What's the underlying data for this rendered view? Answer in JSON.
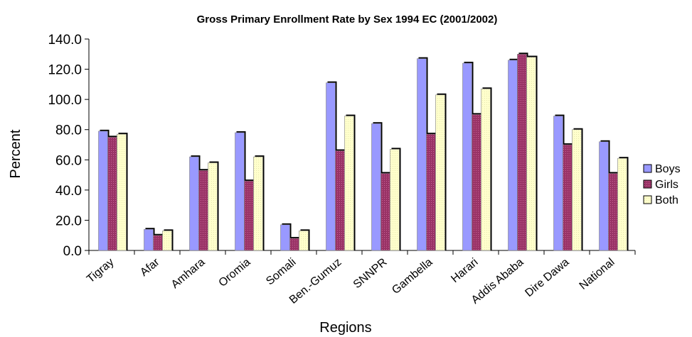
{
  "chart_data": {
    "type": "bar",
    "title": "Gross Primary Enrollment Rate by Sex 1994 EC (2001/2002)",
    "xlabel": "Regions",
    "ylabel": "Percent",
    "ylim": [
      0,
      140
    ],
    "yticks": [
      "0.0",
      "20.0",
      "40.0",
      "60.0",
      "80.0",
      "100.0",
      "120.0",
      "140.0"
    ],
    "categories": [
      "Tigray",
      "Afar",
      "Amhara",
      "Oromia",
      "Somali",
      "Ben.-Gumuz",
      "SNNPR",
      "Gambella",
      "Harari",
      "Addis Ababa",
      "Dire Dawa",
      "National"
    ],
    "series": [
      {
        "name": "Boys",
        "color": "#9999ff",
        "values": [
          79,
          14,
          62,
          78,
          17,
          111,
          84,
          127,
          124,
          126,
          89,
          72
        ]
      },
      {
        "name": "Girls",
        "color": "#993366",
        "values": [
          75,
          10,
          53,
          46,
          8,
          66,
          51,
          77,
          90,
          130,
          70,
          51
        ]
      },
      {
        "name": "Both",
        "color": "#ffffcc",
        "values": [
          77,
          13,
          58,
          62,
          13,
          89,
          67,
          103,
          107,
          128,
          80,
          61
        ]
      }
    ],
    "grid": false,
    "legend_position": "right"
  }
}
